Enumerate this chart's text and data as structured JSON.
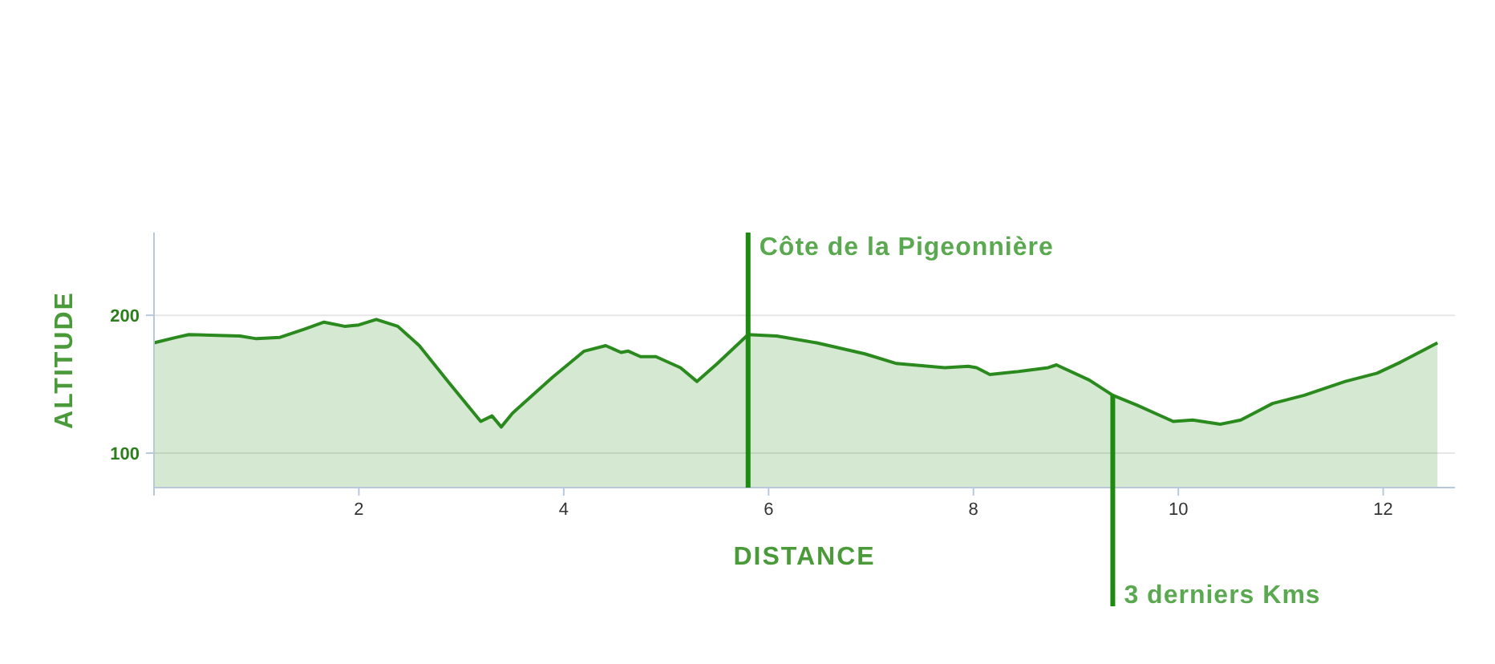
{
  "chart_data": {
    "type": "area",
    "xlabel": "DISTANCE",
    "ylabel": "ALTITUDE",
    "xlim": [
      0,
      12.7
    ],
    "ylim": [
      75,
      260
    ],
    "xticks": [
      {
        "value": 0,
        "label": null
      },
      2,
      4,
      6,
      8,
      10,
      12
    ],
    "yticks": [
      100,
      200
    ],
    "grid": "y",
    "series": [
      {
        "color": "#2a8a1e",
        "x": [
          0,
          0.22,
          0.34,
          0.84,
          1.0,
          1.23,
          1.47,
          1.66,
          1.86,
          2.0,
          2.17,
          2.38,
          2.59,
          2.88,
          3.19,
          3.3,
          3.39,
          3.5,
          3.89,
          4.2,
          4.41,
          4.56,
          4.63,
          4.75,
          4.9,
          5.14,
          5.3,
          5.5,
          5.8,
          6.08,
          6.47,
          6.94,
          7.25,
          7.72,
          7.95,
          8.03,
          8.16,
          8.42,
          8.73,
          8.81,
          9.13,
          9.36,
          9.59,
          9.95,
          10.14,
          10.41,
          10.61,
          10.92,
          11.23,
          11.63,
          11.94,
          12.17,
          12.53
        ],
        "values": [
          180,
          184,
          186,
          185,
          183,
          184,
          190,
          195,
          192,
          193,
          197,
          192,
          178,
          151,
          123,
          127,
          119,
          129,
          155,
          174,
          178,
          173,
          174,
          170,
          170,
          162,
          152,
          165,
          186,
          185,
          180,
          172,
          165,
          162,
          163,
          162,
          157,
          159,
          162,
          164,
          153,
          142,
          135,
          123,
          124,
          121,
          124,
          136,
          142,
          152,
          158,
          166,
          180
        ]
      }
    ],
    "ref_lines": [
      {
        "axis": "x",
        "value": 5.8,
        "label": "Côte de la Pigeonnière",
        "color": "#1e8a12"
      },
      {
        "axis": "x",
        "value": 9.36,
        "label": "3 derniers Kms",
        "color": "#1e8a12"
      }
    ]
  }
}
